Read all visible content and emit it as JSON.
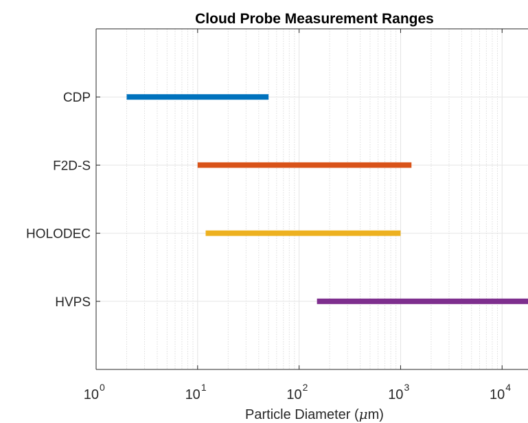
{
  "chart_data": {
    "type": "range",
    "title": "Cloud Probe Measurement Ranges",
    "xlabel": {
      "prefix": "Particle Diameter (",
      "symbol": "μ",
      "suffix": "m)"
    },
    "ylabel": "",
    "xscale": "log",
    "xlim": [
      1,
      18000
    ],
    "x_ticks": [
      {
        "base": "10",
        "exp": "0",
        "value": 1
      },
      {
        "base": "10",
        "exp": "1",
        "value": 10
      },
      {
        "base": "10",
        "exp": "2",
        "value": 100
      },
      {
        "base": "10",
        "exp": "3",
        "value": 1000
      },
      {
        "base": "10",
        "exp": "4",
        "value": 10000
      }
    ],
    "grid": true,
    "categories": [
      "CDP",
      "F2D-S",
      "HOLODEC",
      "HVPS"
    ],
    "series": [
      {
        "name": "CDP",
        "x": [
          2,
          50
        ],
        "color": "#0072BD"
      },
      {
        "name": "F2D-S",
        "x": [
          10,
          1280
        ],
        "color": "#D95319"
      },
      {
        "name": "HOLODEC",
        "x": [
          12,
          1000
        ],
        "color": "#EDB120"
      },
      {
        "name": "HVPS",
        "x": [
          150,
          19200
        ],
        "color": "#7E2F8E"
      }
    ]
  }
}
